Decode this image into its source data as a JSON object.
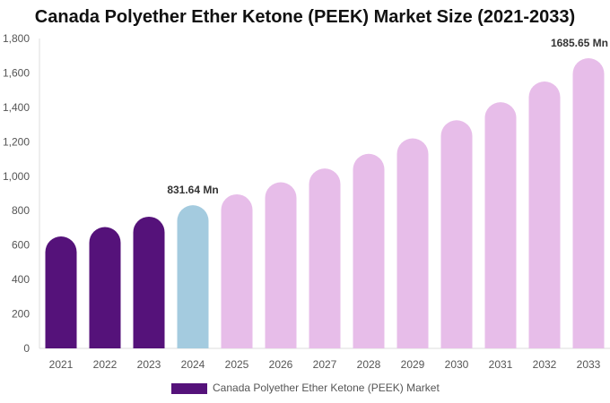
{
  "chart_data": {
    "type": "bar",
    "title": "Canada Polyether Ether Ketone (PEEK) Market Size (2021-2033)",
    "categories": [
      "2021",
      "2022",
      "2023",
      "2024",
      "2025",
      "2026",
      "2027",
      "2028",
      "2029",
      "2030",
      "2031",
      "2032",
      "2033"
    ],
    "series": [
      {
        "name": "Canada Polyether Ether Ketone (PEEK) Market",
        "values": [
          650,
          705,
          765,
          831.64,
          895,
          965,
          1045,
          1130,
          1220,
          1325,
          1430,
          1550,
          1685.65
        ]
      }
    ],
    "bar_colors": [
      "#55127a",
      "#55127a",
      "#55127a",
      "#a4cbdf",
      "#e7bde9",
      "#e7bde9",
      "#e7bde9",
      "#e7bde9",
      "#e7bde9",
      "#e7bde9",
      "#e7bde9",
      "#e7bde9",
      "#e7bde9"
    ],
    "data_labels": [
      {
        "category": "2024",
        "text": "831.64 Mn"
      },
      {
        "category": "2033",
        "text": "1685.65 Mn"
      }
    ],
    "yticks": [
      "0",
      "200",
      "400",
      "600",
      "800",
      "1,000",
      "1,200",
      "1,400",
      "1,600",
      "1,800"
    ],
    "ylim": [
      0,
      1800
    ],
    "grid": false,
    "legend": {
      "position": "bottom",
      "label": "Canada Polyether Ether Ketone (PEEK) Market",
      "color": "#55127a"
    }
  }
}
